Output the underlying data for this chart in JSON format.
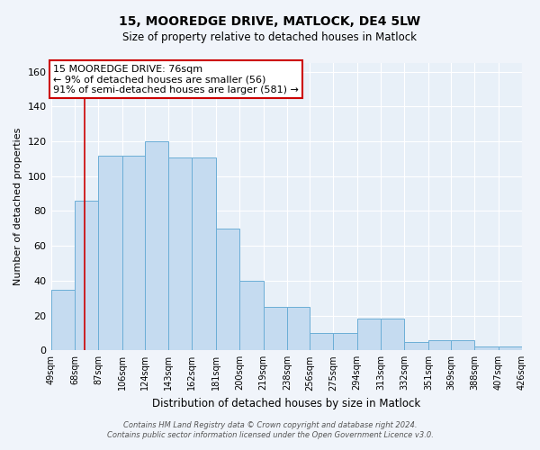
{
  "title1": "15, MOOREDGE DRIVE, MATLOCK, DE4 5LW",
  "title2": "Size of property relative to detached houses in Matlock",
  "xlabel": "Distribution of detached houses by size in Matlock",
  "ylabel": "Number of detached properties",
  "footnote1": "Contains HM Land Registry data © Crown copyright and database right 2024.",
  "footnote2": "Contains public sector information licensed under the Open Government Licence v3.0.",
  "annotation_line1": "15 MOOREDGE DRIVE: 76sqm",
  "annotation_line2": "← 9% of detached houses are smaller (56)",
  "annotation_line3": "91% of semi-detached houses are larger (581) →",
  "bar_values": [
    35,
    86,
    112,
    112,
    120,
    111,
    111,
    70,
    40,
    25,
    25,
    10,
    10,
    18,
    18,
    5,
    6,
    6,
    2,
    2
  ],
  "bin_edges": [
    49,
    68,
    87,
    106,
    124,
    143,
    162,
    181,
    200,
    219,
    238,
    256,
    275,
    294,
    313,
    332,
    351,
    369,
    388,
    407,
    426
  ],
  "tick_labels": [
    "49sqm",
    "68sqm",
    "87sqm",
    "106sqm",
    "124sqm",
    "143sqm",
    "162sqm",
    "181sqm",
    "200sqm",
    "219sqm",
    "238sqm",
    "256sqm",
    "275sqm",
    "294sqm",
    "313sqm",
    "332sqm",
    "351sqm",
    "369sqm",
    "388sqm",
    "407sqm",
    "426sqm"
  ],
  "bar_color": "#c5dbf0",
  "bar_edge_color": "#6baed6",
  "bg_color": "#e8f0f8",
  "grid_color": "#ffffff",
  "fig_bg_color": "#f0f4fa",
  "red_line_x": 76,
  "ylim": [
    0,
    165
  ],
  "yticks": [
    0,
    20,
    40,
    60,
    80,
    100,
    120,
    140,
    160
  ],
  "annotation_box_color": "#ffffff",
  "annotation_box_edge": "#cc0000",
  "red_line_color": "#cc0000",
  "title1_fontsize": 10,
  "title2_fontsize": 9
}
